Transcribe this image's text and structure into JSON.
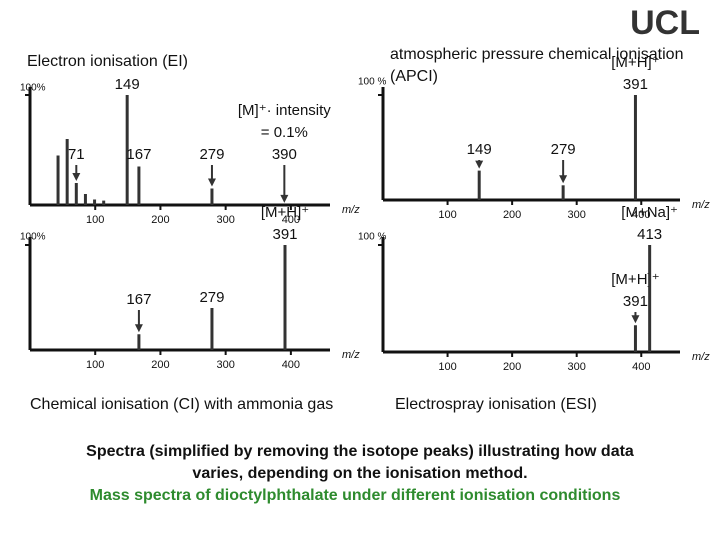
{
  "logo": "UCL",
  "chart_data": [
    {
      "type": "bar",
      "title": [
        "Electron ionisation (EI)"
      ],
      "xlabel": "m/z",
      "x": [
        43,
        57,
        71,
        85,
        99,
        113,
        149,
        167,
        279,
        390
      ],
      "values": [
        45,
        60,
        20,
        10,
        5,
        4,
        100,
        35,
        15,
        0.1
      ],
      "show_labels": [
        false,
        false,
        true,
        false,
        false,
        false,
        true,
        true,
        true,
        true
      ],
      "peak_notes": [
        null,
        null,
        null,
        null,
        null,
        null,
        null,
        null,
        null,
        [
          "[M]⁺· intensity",
          "= 0.1%"
        ]
      ],
      "xlim": [
        0,
        460
      ],
      "xticks": [
        100,
        200,
        300,
        400
      ],
      "ylim": [
        0,
        100
      ],
      "yticks": [
        {
          "value": 100,
          "label": "100%"
        }
      ],
      "color": "#333333"
    },
    {
      "type": "bar",
      "title": [
        "atmospheric pressure chemical ionisation",
        "(APCI)"
      ],
      "xlabel": "m/z",
      "x": [
        149,
        279,
        391
      ],
      "values": [
        28,
        14,
        100
      ],
      "show_labels": [
        true,
        true,
        true
      ],
      "peak_notes": [
        null,
        null,
        [
          "[M+H]⁺"
        ]
      ],
      "xlim": [
        0,
        460
      ],
      "xticks": [
        100,
        200,
        300,
        400
      ],
      "ylim": [
        0,
        100
      ],
      "yticks": [
        {
          "value": 100,
          "label": "100 %"
        }
      ],
      "color": "#333333"
    },
    {
      "type": "bar",
      "title": [
        "Chemical ionisation (CI) with ammonia gas"
      ],
      "xlabel": "m/z",
      "x": [
        167,
        279,
        391
      ],
      "values": [
        15,
        40,
        100
      ],
      "show_labels": [
        true,
        true,
        true
      ],
      "peak_notes": [
        null,
        null,
        [
          "[M+H]⁺"
        ]
      ],
      "xlim": [
        0,
        460
      ],
      "xticks": [
        100,
        200,
        300,
        400
      ],
      "ylim": [
        0,
        100
      ],
      "yticks": [
        {
          "value": 100,
          "label": "100%"
        }
      ],
      "color": "#333333"
    },
    {
      "type": "bar",
      "title": [
        "Electrospray ionisation (ESI)"
      ],
      "xlabel": "m/z",
      "x": [
        391,
        413
      ],
      "values": [
        25,
        100
      ],
      "show_labels": [
        true,
        true
      ],
      "peak_notes": [
        [
          "[M+H]⁺"
        ],
        [
          "[M+Na]⁺"
        ]
      ],
      "xlim": [
        0,
        460
      ],
      "xticks": [
        100,
        200,
        300,
        400
      ],
      "ylim": [
        0,
        100
      ],
      "yticks": [
        {
          "value": 100,
          "label": "100 %"
        }
      ],
      "color": "#333333"
    }
  ],
  "caption": [
    "Spectra (simplified by removing the isotope peaks) illustrating how data",
    "varies, depending on the ionisation method.",
    "Mass spectra of dioctylphthalate under different ionisation conditions"
  ]
}
